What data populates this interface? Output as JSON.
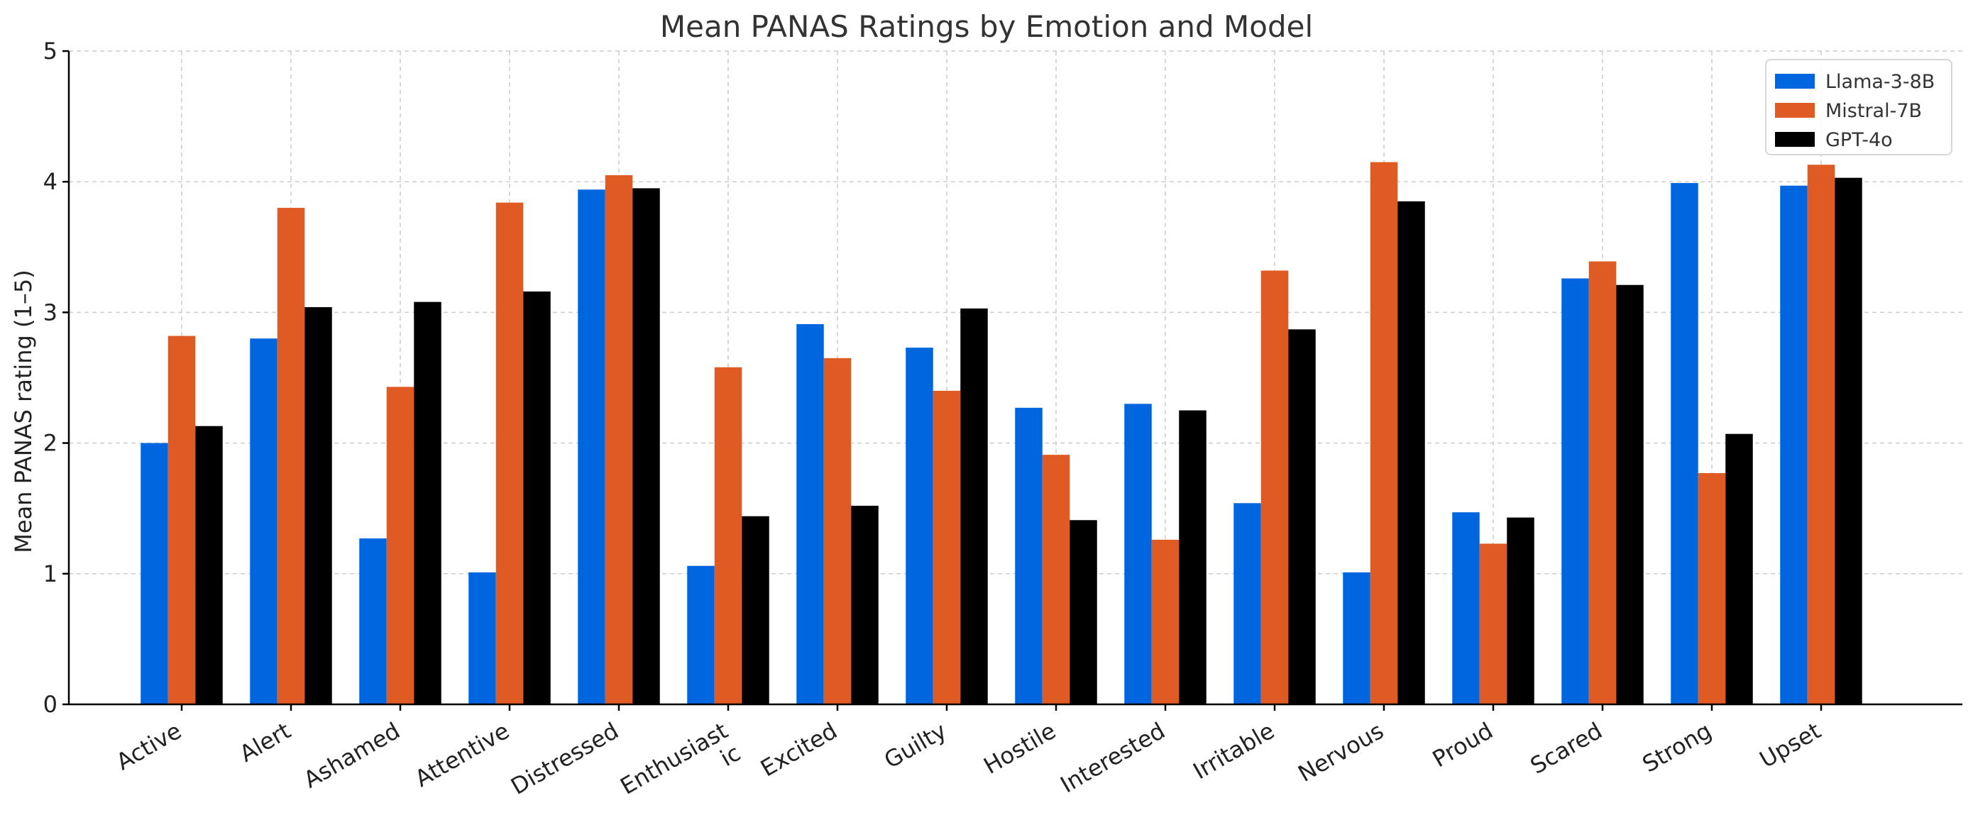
{
  "chart_data": {
    "type": "bar",
    "title": "Mean PANAS Ratings by Emotion and Model",
    "xlabel": "",
    "ylabel": "Mean PANAS rating (1–5)",
    "ylim": [
      0,
      5
    ],
    "yticks": [
      0,
      1,
      2,
      3,
      4,
      5
    ],
    "grid": true,
    "legend_position": "top-right",
    "categories": [
      "Active",
      "Alert",
      "Ashamed",
      "Attentive",
      "Distressed",
      "Enthusiast\nic",
      "Excited",
      "Guilty",
      "Hostile",
      "Interested",
      "Irritable",
      "Nervous",
      "Proud",
      "Scared",
      "Strong",
      "Upset"
    ],
    "series": [
      {
        "name": "Llama-3-8B",
        "color": "#0066e0",
        "values": [
          2.0,
          2.8,
          1.27,
          1.01,
          3.94,
          1.06,
          2.91,
          2.73,
          2.27,
          2.3,
          1.54,
          1.01,
          1.47,
          3.26,
          3.99,
          3.97
        ]
      },
      {
        "name": "Mistral-7B",
        "color": "#e05a24",
        "values": [
          2.82,
          3.8,
          2.43,
          3.84,
          4.05,
          2.58,
          2.65,
          2.4,
          1.91,
          1.26,
          3.32,
          4.15,
          1.23,
          3.39,
          1.77,
          4.13
        ]
      },
      {
        "name": "GPT-4o",
        "color": "#000000",
        "values": [
          2.13,
          3.04,
          3.08,
          3.16,
          3.95,
          1.44,
          1.52,
          3.03,
          1.41,
          2.25,
          2.87,
          3.85,
          1.43,
          3.21,
          2.07,
          4.03
        ]
      }
    ]
  }
}
